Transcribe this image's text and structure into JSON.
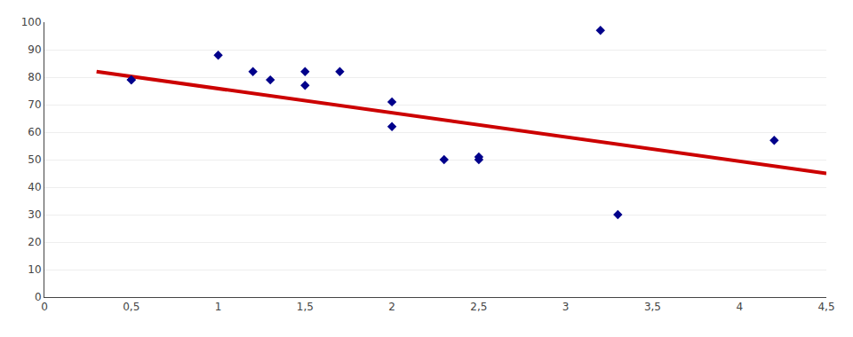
{
  "chart_data": {
    "type": "scatter",
    "series": [
      {
        "type": "scatter",
        "color": "#00008B",
        "marker": "diamond",
        "x": [
          0.5,
          0.5,
          1.0,
          1.2,
          1.3,
          1.5,
          1.5,
          1.7,
          2.0,
          2.0,
          2.3,
          2.5,
          2.5,
          3.2,
          3.3,
          4.2
        ],
        "values": [
          79,
          79,
          88,
          82,
          79,
          82,
          77,
          82,
          71,
          62,
          50,
          51,
          50,
          97,
          30,
          57
        ]
      },
      {
        "type": "line",
        "color": "#CC0000",
        "x": [
          0.3,
          4.5
        ],
        "values": [
          82,
          45
        ]
      }
    ],
    "xlim": [
      0,
      4.5
    ],
    "ylim": [
      0,
      100
    ],
    "xticks": [
      0,
      {
        "value": 0.5,
        "label": "0,5"
      },
      1,
      {
        "value": 1.5,
        "label": "1,5"
      },
      2,
      {
        "value": 2.5,
        "label": "2,5"
      },
      3,
      {
        "value": 3.5,
        "label": "3,5"
      },
      4,
      {
        "value": 4.5,
        "label": "4,5"
      }
    ],
    "yticks": [
      0,
      10,
      20,
      30,
      40,
      50,
      60,
      70,
      80,
      90,
      100
    ],
    "grid": "y"
  }
}
